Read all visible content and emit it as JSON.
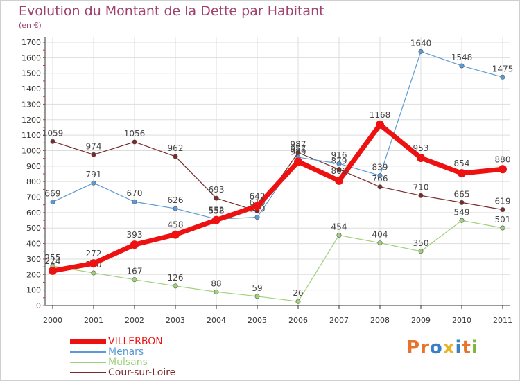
{
  "header": {
    "title": "Evolution du Montant de la Dette par Habitant",
    "subtitle": "(en €)"
  },
  "logo": {
    "text": "Proxiti",
    "letters": [
      "P",
      "r",
      "o",
      "x",
      "i",
      "t",
      "i"
    ],
    "colors": [
      "#e8732a",
      "#e8732a",
      "#3b7fc4",
      "#e8b52a",
      "#3b7fc4",
      "#e8732a",
      "#7ab83b"
    ]
  },
  "chart_data": {
    "type": "line",
    "title": "Evolution du Montant de la Dette par Habitant",
    "subtitle": "(en €)",
    "x": [
      "2000",
      "2001",
      "2002",
      "2003",
      "2004",
      "2005",
      "2006",
      "2007",
      "2008",
      "2009",
      "2010",
      "2011"
    ],
    "ylim": [
      0,
      1700
    ],
    "yticks": [
      0,
      100,
      200,
      300,
      400,
      500,
      600,
      700,
      800,
      900,
      1000,
      1100,
      1200,
      1300,
      1400,
      1500,
      1600,
      1700
    ],
    "grid": true,
    "legend_position": "bottom-left",
    "series": [
      {
        "name": "Cour-sur-Loire",
        "color": "#7a2a2a",
        "values": [
          1059,
          974,
          1056,
          962,
          693,
          610,
          987,
          879,
          766,
          710,
          665,
          619
        ]
      },
      {
        "name": "Mulsans",
        "color": "#9fd07a",
        "values": [
          255,
          210,
          167,
          126,
          88,
          59,
          26,
          454,
          404,
          350,
          549,
          501
        ]
      },
      {
        "name": "Menars",
        "color": "#5b9bd5",
        "values": [
          669,
          791,
          670,
          626,
          558,
          570,
          957,
          916,
          839,
          1640,
          1548,
          1475
        ]
      },
      {
        "name": "VILLERBON",
        "color": "#ee1111",
        "values": [
          224,
          272,
          393,
          458,
          552,
          642,
          929,
          806,
          1168,
          953,
          854,
          880
        ]
      }
    ]
  }
}
